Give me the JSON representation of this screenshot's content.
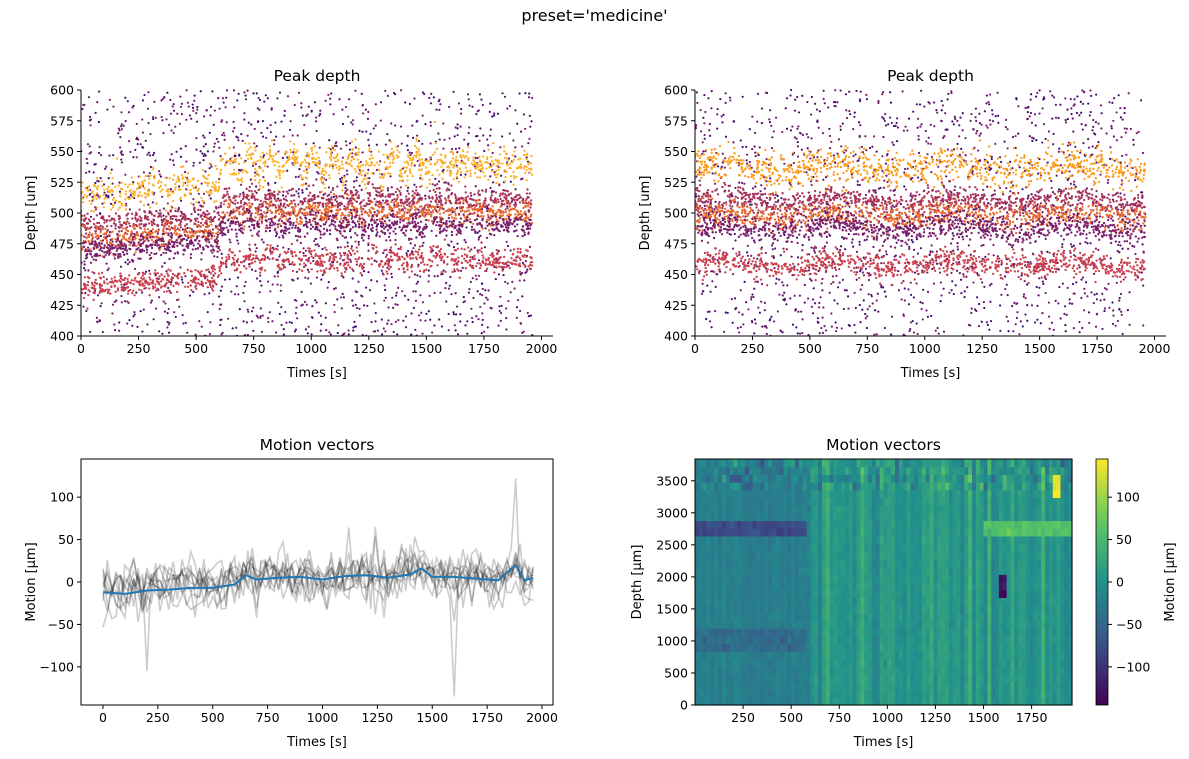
{
  "suptitle": "preset='medicine'",
  "chart_data": [
    {
      "id": "peak-before",
      "type": "scatter",
      "title": "Peak depth",
      "xlabel": "Times [s]",
      "ylabel": "Depth [um]",
      "xlim": [
        0,
        2050
      ],
      "ylim": [
        400,
        600
      ],
      "xticks": [
        0,
        250,
        500,
        750,
        1000,
        1250,
        1500,
        1750,
        2000
      ],
      "yticks": [
        400,
        425,
        450,
        475,
        500,
        525,
        550,
        575,
        600
      ],
      "colormap": "inferno",
      "description_bands": [
        {
          "depth_before_600s": 515,
          "depth_after_600s": 540,
          "color": "#fcb02a",
          "oscillating": true
        },
        {
          "depth_before_600s": 490,
          "depth_after_600s": 510,
          "color": "#a8325a"
        },
        {
          "depth_before_600s": 478,
          "depth_after_600s": 500,
          "color": "#e86a2c"
        },
        {
          "depth_before_600s": 470,
          "depth_after_600s": 490,
          "color": "#7a1f6b"
        },
        {
          "depth_before_600s": 440,
          "depth_after_600s": 462,
          "color": "#c93f4d"
        }
      ],
      "step_time": 600
    },
    {
      "id": "peak-after",
      "type": "scatter",
      "title": "Peak depth",
      "xlabel": "Times [s]",
      "ylabel": "Depth [um]",
      "xlim": [
        0,
        2050
      ],
      "ylim": [
        400,
        600
      ],
      "xticks": [
        0,
        250,
        500,
        750,
        1000,
        1250,
        1500,
        1750,
        2000
      ],
      "yticks": [
        400,
        425,
        450,
        475,
        500,
        525,
        550,
        575,
        600
      ],
      "colormap": "inferno",
      "description_bands": [
        {
          "depth": 537,
          "color": "#fb9b1a"
        },
        {
          "depth": 510,
          "color": "#a8325a"
        },
        {
          "depth": 498,
          "color": "#e86a2c"
        },
        {
          "depth": 488,
          "color": "#7a1f6b"
        },
        {
          "depth": 458,
          "color": "#c93f4d"
        }
      ]
    },
    {
      "id": "motion-lines",
      "type": "line",
      "title": "Motion vectors",
      "xlabel": "Times [s]",
      "ylabel": "Motion [μm]",
      "xlim": [
        -100,
        2050
      ],
      "ylim": [
        -145,
        145
      ],
      "xticks": [
        0,
        250,
        500,
        750,
        1000,
        1250,
        1500,
        1750,
        2000
      ],
      "yticks": [
        -100,
        -50,
        0,
        50,
        100
      ],
      "n_gray_lines": 10,
      "mean_line_color": "#1f77b4",
      "mean_line": [
        [
          0,
          -12
        ],
        [
          100,
          -14
        ],
        [
          200,
          -10
        ],
        [
          300,
          -9
        ],
        [
          400,
          -7
        ],
        [
          500,
          -7
        ],
        [
          600,
          -3
        ],
        [
          650,
          8
        ],
        [
          700,
          3
        ],
        [
          800,
          5
        ],
        [
          900,
          6
        ],
        [
          1000,
          3
        ],
        [
          1100,
          7
        ],
        [
          1200,
          8
        ],
        [
          1300,
          5
        ],
        [
          1400,
          9
        ],
        [
          1450,
          16
        ],
        [
          1500,
          6
        ],
        [
          1600,
          6
        ],
        [
          1700,
          4
        ],
        [
          1800,
          2
        ],
        [
          1880,
          20
        ],
        [
          1920,
          2
        ],
        [
          1960,
          5
        ]
      ]
    },
    {
      "id": "motion-heatmap",
      "type": "heatmap",
      "title": "Motion vectors",
      "xlabel": "Times [s]",
      "ylabel": "Depth [μm]",
      "xlim": [
        0,
        1960
      ],
      "ylim": [
        0,
        3840
      ],
      "xticks": [
        250,
        500,
        750,
        1000,
        1250,
        1500,
        1750
      ],
      "yticks": [
        0,
        500,
        1000,
        1500,
        2000,
        2500,
        3000,
        3500
      ],
      "colormap": "viridis",
      "color_range": [
        -145,
        145
      ],
      "colorbar_label": "Motion [μm]",
      "colorbar_ticks": [
        -100,
        -50,
        0,
        50,
        100
      ],
      "features": [
        {
          "x_range": [
            0,
            580
          ],
          "y_range": [
            2700,
            2900
          ],
          "value": -80
        },
        {
          "x_range": [
            0,
            580
          ],
          "y_range": [
            900,
            1150
          ],
          "value": -45
        },
        {
          "x_range": [
            1500,
            1960
          ],
          "y_range": [
            2700,
            2900
          ],
          "value": 60
        },
        {
          "x_range": [
            1580,
            1610
          ],
          "y_range": [
            1700,
            2050
          ],
          "value": -140
        },
        {
          "x_range": [
            1870,
            1890
          ],
          "y_range": [
            3200,
            3600
          ],
          "value": 130
        }
      ]
    }
  ]
}
